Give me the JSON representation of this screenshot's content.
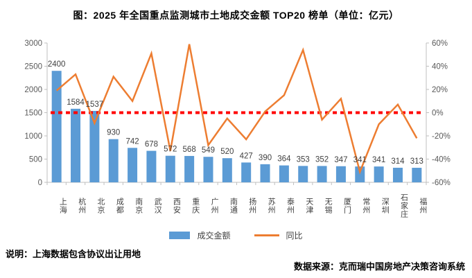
{
  "title": "图：2025 年全国重点监测城市土地成交金额 TOP20 榜单（单位：亿元）",
  "chart_data": {
    "type": "bar",
    "subtype": "bar-line-combo",
    "categories": [
      "上海",
      "杭州",
      "北京",
      "成都",
      "南京",
      "武汉",
      "西安",
      "重庆",
      "广州",
      "南通",
      "扬州",
      "苏州",
      "泰州",
      "天津",
      "无锡",
      "厦门",
      "常州",
      "深圳",
      "石家庄",
      "福州"
    ],
    "series": [
      {
        "name": "成交金额",
        "type": "bar",
        "axis": "left",
        "color": "#5B9BD5",
        "values": [
          2400,
          1584,
          1537,
          930,
          742,
          678,
          572,
          568,
          549,
          520,
          427,
          390,
          364,
          353,
          352,
          347,
          341,
          341,
          314,
          313
        ]
      },
      {
        "name": "同比",
        "type": "line",
        "axis": "right",
        "color": "#ED7D31",
        "values": [
          19,
          33,
          -9,
          31,
          10,
          51,
          -33,
          59,
          -28,
          -5,
          -23,
          1,
          15,
          54,
          -6,
          12,
          -51,
          -10,
          7,
          -22
        ]
      }
    ],
    "left_axis": {
      "min": 0,
      "max": 3000,
      "step": 500,
      "suffix": ""
    },
    "right_axis": {
      "min": -60,
      "max": 60,
      "step": 20,
      "suffix": "%"
    },
    "zero_line": {
      "value": 0,
      "color": "#FF0000",
      "style": "dotted"
    },
    "grid": false,
    "legend_position": "bottom",
    "axis_line_color": "#BFBFBF",
    "axis_text_color": "#595959",
    "bar_label_color": "#404040"
  },
  "legend": {
    "bar_label": "成交金额",
    "line_label": "同比"
  },
  "footer": {
    "note": "说明：上海数据包含协议出让用地",
    "source": "数据来源：克而瑞中国房地产决策咨询系统"
  }
}
